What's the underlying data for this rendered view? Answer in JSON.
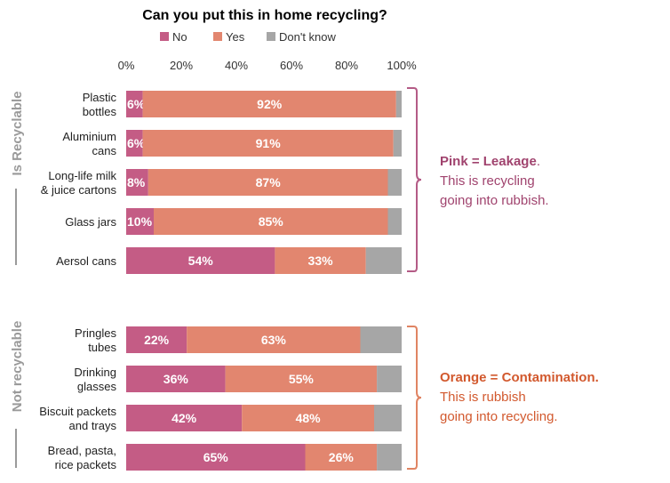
{
  "chart_data": {
    "type": "bar",
    "orientation": "horizontal",
    "stacked": true,
    "title": "Can you put this in home recycling?",
    "x_ticks": [
      "0%",
      "20%",
      "40%",
      "60%",
      "80%",
      "100%"
    ],
    "xlim": [
      0,
      100
    ],
    "legend_position": "top",
    "series": [
      {
        "name": "No",
        "color": "#c45c85",
        "values": [
          6,
          6,
          8,
          10,
          54,
          22,
          36,
          42,
          65
        ]
      },
      {
        "name": "Yes",
        "color": "#e2866f",
        "values": [
          92,
          91,
          87,
          85,
          33,
          63,
          55,
          48,
          26
        ]
      },
      {
        "name": "Don't know",
        "color": "#a6a6a6",
        "values": [
          2,
          3,
          5,
          5,
          13,
          15,
          9,
          10,
          9
        ]
      }
    ],
    "categories": [
      [
        "Plastic",
        "bottles"
      ],
      [
        "Aluminium",
        "cans"
      ],
      [
        "Long-life milk",
        "& juice cartons"
      ],
      [
        "Glass jars"
      ],
      [
        "Aersol cans"
      ],
      [
        "Pringles",
        "tubes"
      ],
      [
        "Drinking",
        "glasses"
      ],
      [
        "Biscuit packets",
        "and trays"
      ],
      [
        "Bread, pasta,",
        "rice packets"
      ]
    ],
    "labels": {
      "No": [
        "6%",
        "6%",
        "8%",
        "10%",
        "54%",
        "22%",
        "36%",
        "42%",
        "65%"
      ],
      "Yes": [
        "92%",
        "91%",
        "87%",
        "85%",
        "33%",
        "63%",
        "55%",
        "48%",
        "26%"
      ]
    },
    "groups": [
      {
        "label": "Is Recyclable",
        "rows": [
          0,
          4
        ]
      },
      {
        "label": "Not recyclable",
        "rows": [
          5,
          8
        ]
      }
    ]
  },
  "annotations": {
    "leakage": {
      "bold": "Pink = Leakage",
      "suffix": ".",
      "line2": "This is recycling",
      "line3": "going into rubbish."
    },
    "contamination": {
      "bold": "Orange = Contamination.",
      "line2": "This is rubbish",
      "line3": "going into recycling."
    }
  },
  "colors": {
    "pink_text": "#a0436e",
    "orange_text": "#d2592e",
    "bracket_pink": "#b45b86",
    "bracket_orange": "#e08463",
    "group_label": "#9a9a9a"
  }
}
